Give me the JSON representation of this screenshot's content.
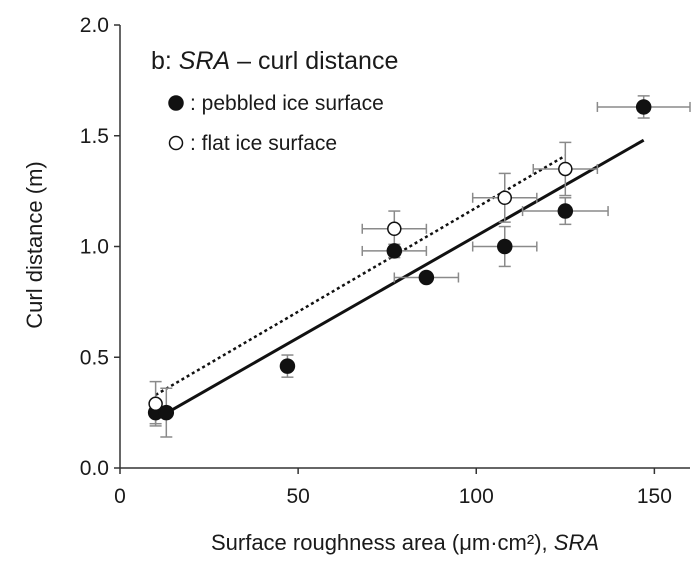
{
  "chart_data": {
    "type": "scatter",
    "title": "b: SRA – curl distance",
    "title_parts": {
      "prefix": "b: ",
      "var": "SRA",
      "suffix": " – curl distance"
    },
    "xlabel": "Surface roughness area (μm·cm²), SRA",
    "xlabel_parts": {
      "main": "Surface roughness area (μm·cm²), ",
      "var": "SRA"
    },
    "ylabel": "Curl distance (m)",
    "xlim": [
      0,
      160
    ],
    "ylim": [
      0,
      2.0
    ],
    "x_ticks": [
      0,
      50,
      100,
      150
    ],
    "x_tick_labels": [
      "0",
      "50",
      "100",
      "150"
    ],
    "y_ticks": [
      0,
      0.5,
      1.0,
      1.5,
      2.0
    ],
    "y_tick_labels": [
      "0.0",
      "0.5",
      "1.0",
      "1.5",
      "2.0"
    ],
    "grid": false,
    "legend_position": "top-left",
    "series": [
      {
        "name": ": pebbled ice surface",
        "marker": "filled-circle",
        "color": "#111111",
        "points": [
          {
            "x": 10,
            "y": 0.25,
            "xerr": 0,
            "yerr": 0.05
          },
          {
            "x": 13,
            "y": 0.25,
            "xerr": 0,
            "yerr": 0.11
          },
          {
            "x": 47,
            "y": 0.46,
            "xerr": 0,
            "yerr": 0.05
          },
          {
            "x": 77,
            "y": 0.98,
            "xerr": 9,
            "yerr": 0.03
          },
          {
            "x": 86,
            "y": 0.86,
            "xerr": 9,
            "yerr": 0
          },
          {
            "x": 108,
            "y": 1.0,
            "xerr": 9,
            "yerr": 0.09
          },
          {
            "x": 125,
            "y": 1.16,
            "xerr": 12,
            "yerr": 0.06
          },
          {
            "x": 147,
            "y": 1.63,
            "xerr": 13,
            "yerr": 0.05
          }
        ],
        "fit_line": {
          "x": [
            10,
            147
          ],
          "y": [
            0.22,
            1.48
          ],
          "style": "solid"
        }
      },
      {
        "name": ": flat ice surface",
        "marker": "open-circle",
        "color": "#111111",
        "points": [
          {
            "x": 10,
            "y": 0.29,
            "xerr": 0,
            "yerr": 0.1
          },
          {
            "x": 77,
            "y": 1.08,
            "xerr": 9,
            "yerr": 0.08
          },
          {
            "x": 108,
            "y": 1.22,
            "xerr": 9,
            "yerr": 0.11
          },
          {
            "x": 125,
            "y": 1.35,
            "xerr": 9,
            "yerr": 0.12
          }
        ],
        "fit_line": {
          "x": [
            10,
            125
          ],
          "y": [
            0.33,
            1.41
          ],
          "style": "dotted"
        }
      }
    ]
  }
}
